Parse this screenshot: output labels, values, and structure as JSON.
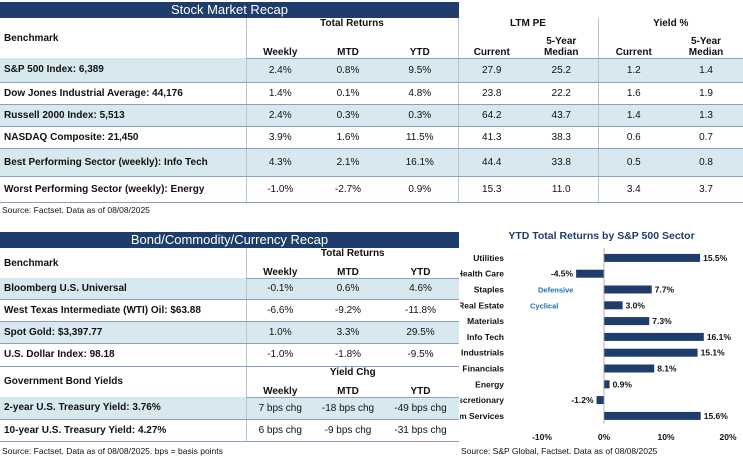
{
  "stock": {
    "title": "Stock Market Recap",
    "headers": {
      "benchmark": "Benchmark",
      "total_returns": "Total Returns",
      "ltm_pe": "LTM PE",
      "yield": "Yield %",
      "weekly": "Weekly",
      "mtd": "MTD",
      "ytd": "YTD",
      "current": "Current",
      "median": "5-Year Median",
      "y_current": "Current",
      "y_median": "5-Year Median"
    },
    "rows": [
      {
        "name": "S&P 500 Index: 6,389",
        "weekly": "2.4%",
        "mtd": "0.8%",
        "ytd": "9.5%",
        "pe_cur": "27.9",
        "pe_med": "25.2",
        "y_cur": "1.2",
        "y_med": "1.4"
      },
      {
        "name": "Dow Jones Industrial Average: 44,176",
        "weekly": "1.4%",
        "mtd": "0.1%",
        "ytd": "4.8%",
        "pe_cur": "23.8",
        "pe_med": "22.2",
        "y_cur": "1.6",
        "y_med": "1.9"
      },
      {
        "name": "Russell 2000 Index: 5,513",
        "weekly": "2.4%",
        "mtd": "0.3%",
        "ytd": "0.3%",
        "pe_cur": "64.2",
        "pe_med": "43.7",
        "y_cur": "1.4",
        "y_med": "1.3"
      },
      {
        "name": "NASDAQ Composite: 21,450",
        "weekly": "3.9%",
        "mtd": "1.6%",
        "ytd": "11.5%",
        "pe_cur": "41.3",
        "pe_med": "38.3",
        "y_cur": "0.6",
        "y_med": "0.7"
      },
      {
        "name": "Best Performing Sector (weekly): Info Tech",
        "weekly": "4.3%",
        "mtd": "2.1%",
        "ytd": "16.1%",
        "pe_cur": "44.4",
        "pe_med": "33.8",
        "y_cur": "0.5",
        "y_med": "0.8"
      },
      {
        "name": "Worst Performing Sector (weekly): Energy",
        "weekly": "-1.0%",
        "mtd": "-2.7%",
        "ytd": "0.9%",
        "pe_cur": "15.3",
        "pe_med": "11.0",
        "y_cur": "3.4",
        "y_med": "3.7"
      }
    ],
    "source": "Source: Factset. Data as of 08/08/2025"
  },
  "bond": {
    "title": "Bond/Commodity/Currency Recap",
    "headers": {
      "benchmark": "Benchmark",
      "total_returns": "Total Returns",
      "weekly": "Weekly",
      "mtd": "MTD",
      "ytd": "YTD"
    },
    "rows": [
      {
        "name": "Bloomberg U.S. Universal",
        "weekly": "-0.1%",
        "mtd": "0.6%",
        "ytd": "4.6%"
      },
      {
        "name": "West Texas Intermediate (WTI) Oil: $63.88",
        "weekly": "-6.6%",
        "mtd": "-9.2%",
        "ytd": "-11.8%"
      },
      {
        "name": "Spot Gold: $3,397.77",
        "weekly": "1.0%",
        "mtd": "3.3%",
        "ytd": "29.5%"
      },
      {
        "name": "U.S. Dollar Index: 98.18",
        "weekly": "-1.0%",
        "mtd": "-1.8%",
        "ytd": "-9.5%"
      }
    ],
    "gov": {
      "title": "Government Bond Yields",
      "yield_chg": "Yield Chg",
      "weekly": "Weekly",
      "mtd": "MTD",
      "ytd": "YTD",
      "rows": [
        {
          "name": "2-year U.S. Treasury Yield: 3.76%",
          "weekly": "7 bps chg",
          "mtd": "-18 bps chg",
          "ytd": "-49 bps chg"
        },
        {
          "name": "10-year U.S. Treasury Yield: 4.27%",
          "weekly": "6 bps chg",
          "mtd": "-9 bps chg",
          "ytd": "-31 bps chg"
        }
      ]
    },
    "source": "Source: Factset. Data as of 08/08/2025. bps = basis points"
  },
  "chart_data": {
    "type": "bar",
    "orientation": "horizontal",
    "title": "YTD Total Returns by S&P 500 Sector",
    "categories": [
      "Utilities",
      "Health Care",
      "Staples",
      "Real Estate",
      "Materials",
      "Info Tech",
      "Industrials",
      "Financials",
      "Energy",
      "Discretionary",
      "Comm Services"
    ],
    "values": [
      15.5,
      -4.5,
      7.7,
      3.0,
      7.3,
      16.1,
      15.1,
      8.1,
      0.9,
      -1.2,
      15.6
    ],
    "value_labels": [
      "15.5%",
      "-4.5%",
      "7.7%",
      "3.0%",
      "7.3%",
      "16.1%",
      "15.1%",
      "8.1%",
      "0.9%",
      "-1.2%",
      "15.6%"
    ],
    "xlim": [
      -10,
      20
    ],
    "ticks": [
      -10,
      0,
      10,
      20
    ],
    "tick_labels": [
      "-10%",
      "0%",
      "10%",
      "20%"
    ],
    "group_labels": {
      "defensive": "Defensive",
      "cyclical": "Cyclical"
    },
    "bar_color": "#1f3d6b",
    "label_color": "#1f6fb0",
    "source": "Source: S&P Global, Factset. Data as of 08/08/2025"
  },
  "colors": {
    "header": "#1f3d6b",
    "shade": "#d7e9ef"
  }
}
